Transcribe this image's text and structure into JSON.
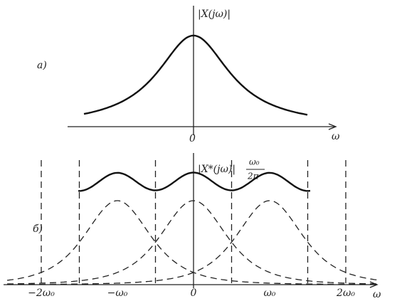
{
  "panel_a": {
    "label": "а)",
    "y_label": "|X(jω)|",
    "origin": "0",
    "x_label": "ω"
  },
  "panel_b": {
    "label": "б)",
    "y_label": "|X*(jω)|",
    "y_label_num": "ω₀",
    "y_label_den": "2π",
    "ticks": [
      "−2ω₀",
      "−ω₀",
      "0",
      "ω₀",
      "2ω₀"
    ],
    "x_label": "ω"
  }
}
